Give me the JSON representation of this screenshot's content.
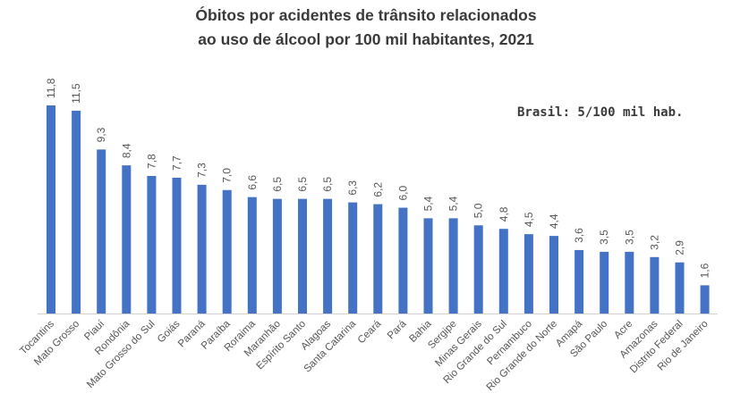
{
  "chart_data": {
    "type": "bar",
    "title": [
      "Óbitos por acidentes de trânsito relacionados",
      "ao uso de álcool por 100 mil habitantes, 2021"
    ],
    "annotation": "Brasil: 5/100 mil hab.",
    "categories": [
      "Tocantins",
      "Mato Grosso",
      "Piauí",
      "Rondônia",
      "Mato Grosso do Sul",
      "Goiás",
      "Paraná",
      "Paraíba",
      "Roraima",
      "Maranhão",
      "Espírito Santo",
      "Alagoas",
      "Santa Catarina",
      "Ceará",
      "Pará",
      "Bahia",
      "Sergipe",
      "Minas Gerais",
      "Rio Grande do Sul",
      "Pernambuco",
      "Rio Grande do Norte",
      "Amapá",
      "São Paulo",
      "Acre",
      "Amazonas",
      "Distrito Federal",
      "Rio de Janeiro"
    ],
    "values": [
      11.8,
      11.5,
      9.3,
      8.4,
      7.8,
      7.7,
      7.3,
      7.0,
      6.6,
      6.5,
      6.5,
      6.5,
      6.3,
      6.2,
      6.0,
      5.4,
      5.4,
      5.0,
      4.8,
      4.5,
      4.4,
      3.6,
      3.5,
      3.5,
      3.2,
      2.9,
      1.6
    ],
    "data_labels": [
      "11,8",
      "11,5",
      "9,3",
      "8,4",
      "7,8",
      "7,7",
      "7,3",
      "7,0",
      "6,6",
      "6,5",
      "6,5",
      "6,5",
      "6,3",
      "6,2",
      "6,0",
      "5,4",
      "5,4",
      "5,0",
      "4,8",
      "4,5",
      "4,4",
      "3,6",
      "3,5",
      "3,5",
      "3,2",
      "2,9",
      "1,6"
    ],
    "xlabel": "",
    "ylabel": "",
    "ylim": [
      0,
      11.8
    ],
    "grid": false,
    "legend": "none",
    "bar_color": "#4472c4"
  }
}
